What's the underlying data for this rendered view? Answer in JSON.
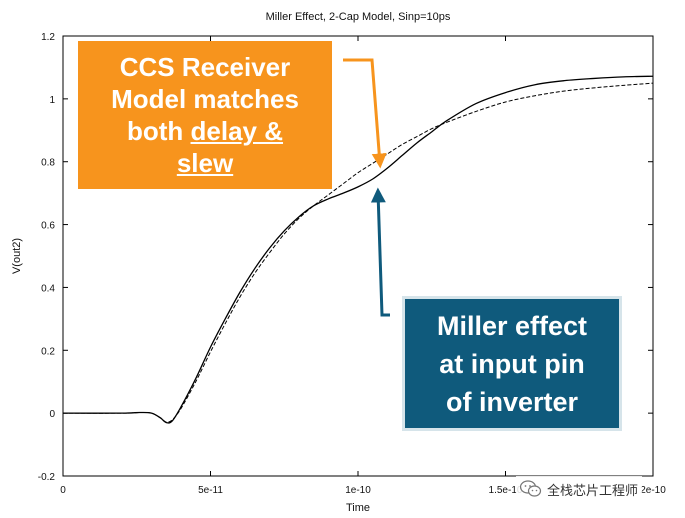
{
  "chart_data": {
    "type": "line",
    "title": "Miller Effect, 2-Cap Model, Sinp=10ps",
    "xlabel": "Time",
    "ylabel": "V(out2)",
    "xlim": [
      0,
      2e-10
    ],
    "ylim": [
      -0.2,
      1.2
    ],
    "grid": false,
    "x_ticks": [
      {
        "value": 0,
        "label": "0"
      },
      {
        "value": 5e-11,
        "label": "5e-11"
      },
      {
        "value": 1e-10,
        "label": "1e-10"
      },
      {
        "value": 1.5e-10,
        "label": "1.5e-10"
      },
      {
        "value": 2e-10,
        "label": "2e-10"
      }
    ],
    "y_ticks": [
      {
        "value": -0.2,
        "label": "-0.2"
      },
      {
        "value": 0,
        "label": "0"
      },
      {
        "value": 0.2,
        "label": "0.2"
      },
      {
        "value": 0.4,
        "label": "0.4"
      },
      {
        "value": 0.6,
        "label": "0.6"
      },
      {
        "value": 0.8,
        "label": "0.8"
      },
      {
        "value": 1,
        "label": "1"
      },
      {
        "value": 1.2,
        "label": "1.2"
      }
    ],
    "series": [
      {
        "style": "solid",
        "color": "#000000",
        "x": [
          0,
          2e-11,
          2.6e-11,
          3e-11,
          3.3e-11,
          3.5e-11,
          3.7e-11,
          4e-11,
          4.5e-11,
          5e-11,
          5.5e-11,
          6e-11,
          6.5e-11,
          7e-11,
          7.5e-11,
          8e-11,
          8.5e-11,
          9e-11,
          9.5e-11,
          1e-10,
          1.05e-10,
          1.1e-10,
          1.15e-10,
          1.2e-10,
          1.25e-10,
          1.3e-10,
          1.4e-10,
          1.5e-10,
          1.6e-10,
          1.7e-10,
          1.8e-10,
          1.9e-10,
          2e-10
        ],
        "y": [
          0,
          0,
          0.002,
          0.0,
          -0.015,
          -0.03,
          -0.025,
          0.02,
          0.11,
          0.21,
          0.3,
          0.385,
          0.46,
          0.525,
          0.58,
          0.625,
          0.66,
          0.682,
          0.7,
          0.72,
          0.745,
          0.78,
          0.82,
          0.86,
          0.895,
          0.93,
          0.985,
          1.02,
          1.045,
          1.058,
          1.065,
          1.07,
          1.072
        ]
      },
      {
        "style": "dashed",
        "color": "#000000",
        "x": [
          0,
          2e-11,
          2.6e-11,
          3e-11,
          3.3e-11,
          3.5e-11,
          3.7e-11,
          4e-11,
          4.5e-11,
          5e-11,
          5.5e-11,
          6e-11,
          6.5e-11,
          7e-11,
          7.5e-11,
          8e-11,
          8.5e-11,
          9e-11,
          9.5e-11,
          1e-10,
          1.05e-10,
          1.1e-10,
          1.15e-10,
          1.2e-10,
          1.25e-10,
          1.3e-10,
          1.4e-10,
          1.5e-10,
          1.6e-10,
          1.7e-10,
          1.8e-10,
          1.9e-10,
          2e-10
        ],
        "y": [
          0,
          0,
          0.002,
          0.0,
          -0.015,
          -0.028,
          -0.022,
          0.015,
          0.1,
          0.195,
          0.285,
          0.37,
          0.445,
          0.51,
          0.57,
          0.62,
          0.66,
          0.695,
          0.73,
          0.765,
          0.795,
          0.825,
          0.855,
          0.88,
          0.905,
          0.925,
          0.96,
          0.99,
          1.01,
          1.025,
          1.035,
          1.043,
          1.05
        ]
      }
    ],
    "annotations": [
      {
        "id": "orange",
        "lines": [
          "CCS Receiver",
          "Model matches",
          "both ",
          "delay &",
          "slew"
        ],
        "color": "#f7941d"
      },
      {
        "id": "blue",
        "lines": [
          "Miller effect",
          "at input pin",
          "of inverter"
        ],
        "color": "#0f5a7c"
      }
    ]
  },
  "callouts": {
    "orange": {
      "line1": "CCS Receiver",
      "line2": "Model matches",
      "line3a": "both ",
      "line3b": "delay &",
      "line4": "slew"
    },
    "blue": {
      "line1": "Miller effect",
      "line2": "at input pin",
      "line3": "of inverter"
    }
  },
  "watermark": {
    "text": "全栈芯片工程师"
  },
  "colors": {
    "orange": "#f7941d",
    "blue": "#0f5a7c",
    "arrow_orange": "#f7941d",
    "arrow_blue": "#0f5a7c"
  }
}
